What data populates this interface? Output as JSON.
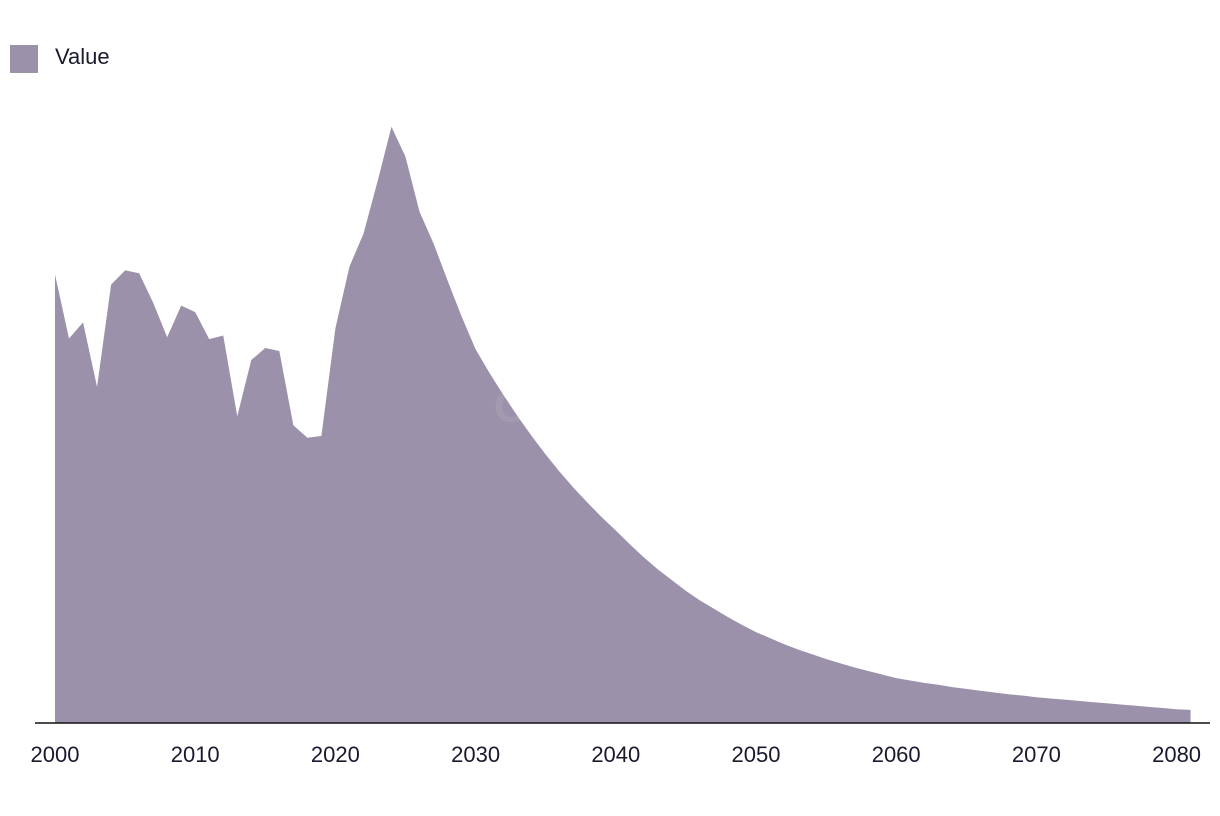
{
  "chart_data": {
    "type": "area",
    "legend": "Value",
    "watermark": "GlobalData",
    "color": "#9b91aa",
    "x": [
      2000,
      2001,
      2002,
      2003,
      2004,
      2005,
      2006,
      2007,
      2008,
      2009,
      2010,
      2011,
      2012,
      2013,
      2014,
      2015,
      2016,
      2017,
      2018,
      2019,
      2020,
      2021,
      2022,
      2023,
      2024,
      2025,
      2026,
      2027,
      2028,
      2029,
      2030,
      2031,
      2032,
      2033,
      2034,
      2035,
      2036,
      2037,
      2038,
      2039,
      2040,
      2041,
      2042,
      2043,
      2044,
      2045,
      2046,
      2047,
      2048,
      2049,
      2050,
      2051,
      2052,
      2053,
      2054,
      2055,
      2056,
      2057,
      2058,
      2059,
      2060,
      2061,
      2062,
      2063,
      2064,
      2065,
      2066,
      2067,
      2068,
      2069,
      2070,
      2071,
      2072,
      2073,
      2074,
      2075,
      2076,
      2077,
      2078,
      2079,
      2080,
      2081
    ],
    "values": [
      75,
      64.3,
      67,
      56.2,
      73.3,
      75.7,
      75.2,
      70.3,
      64.5,
      69.8,
      68.7,
      64.2,
      64.8,
      51.3,
      60.7,
      62.7,
      62.2,
      49.8,
      47.7,
      48,
      66,
      76.3,
      81.8,
      90.5,
      99.7,
      94.7,
      85.5,
      80.2,
      74,
      68,
      62.5,
      58.5,
      54.8,
      51.3,
      48,
      44.9,
      42,
      39.3,
      36.8,
      34.4,
      32.2,
      29.9,
      27.7,
      25.7,
      23.9,
      22.1,
      20.5,
      19.1,
      17.7,
      16.4,
      15.2,
      14.2,
      13.2,
      12.3,
      11.5,
      10.7,
      10,
      9.3,
      8.7,
      8.1,
      7.5,
      7.1,
      6.7,
      6.4,
      6,
      5.7,
      5.4,
      5.1,
      4.8,
      4.6,
      4.3,
      4.1,
      3.9,
      3.7,
      3.5,
      3.3,
      3.1,
      2.9,
      2.7,
      2.5,
      2.3,
      2.2
    ],
    "xlim": [
      2000,
      2081
    ],
    "xticks": [
      2000,
      2010,
      2020,
      2030,
      2040,
      2050,
      2060,
      2070,
      2080
    ],
    "ylim": [
      0,
      100
    ]
  }
}
